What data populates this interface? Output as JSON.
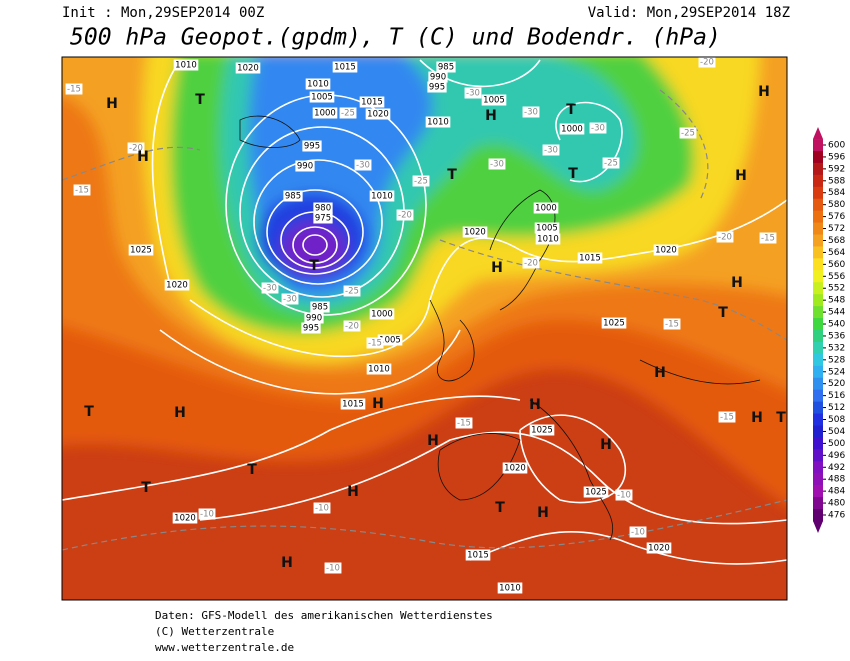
{
  "header": {
    "init": "Init : Mon,29SEP2014 00Z",
    "valid": "Valid: Mon,29SEP2014 18Z",
    "title": "500 hPa Geopot.(gpdm), T (C) und Bodendr. (hPa)"
  },
  "colorbar": {
    "ticks": [
      600,
      596,
      592,
      588,
      584,
      580,
      576,
      572,
      568,
      564,
      560,
      556,
      552,
      548,
      544,
      540,
      536,
      532,
      528,
      524,
      520,
      516,
      512,
      508,
      504,
      500,
      496,
      492,
      488,
      484,
      480,
      476
    ],
    "colors": [
      "#c01060",
      "#a00020",
      "#b41818",
      "#c82814",
      "#d83c10",
      "#e45a10",
      "#ec7010",
      "#f08818",
      "#f4a020",
      "#f8c020",
      "#fce020",
      "#f0f020",
      "#c8f020",
      "#a0e820",
      "#70e030",
      "#40d840",
      "#30d080",
      "#30d0b0",
      "#30c8e0",
      "#30b0f0",
      "#3090f0",
      "#3070f0",
      "#2050e0",
      "#2030e0",
      "#2020d0",
      "#4010d0",
      "#6010c8",
      "#8010c0",
      "#9010b8",
      "#a010b0",
      "#800890",
      "#600070"
    ]
  },
  "map": {
    "pressure_labels": [
      1010,
      1020,
      1015,
      1010,
      1005,
      1000,
      1015,
      1020,
      985,
      990,
      995,
      1005,
      1010,
      1000,
      995,
      990,
      985,
      1010,
      980,
      975,
      1020,
      1000,
      1005,
      1010,
      1015,
      1020,
      1025,
      1020,
      985,
      990,
      995,
      1000,
      1005,
      1010,
      1015,
      1025,
      1025,
      1020,
      1025,
      1020,
      1020,
      1015,
      1010
    ],
    "temperature_labels": [
      -15,
      -20,
      -15,
      -30,
      -30,
      -30,
      -30,
      -30,
      -25,
      -25,
      -25,
      -30,
      -25,
      -20,
      -25,
      -20,
      -15,
      -30,
      -30,
      -20,
      -20,
      -15,
      -15,
      -15,
      -15,
      -10,
      -10,
      -10,
      -10,
      -10,
      -20
    ],
    "pressure_centers": [
      "H",
      "T",
      "H",
      "H",
      "T",
      "T",
      "H",
      "T",
      "H",
      "H",
      "H",
      "T",
      "H",
      "H",
      "H",
      "H",
      "T",
      "H",
      "H",
      "T",
      "T",
      "H",
      "T",
      "H",
      "H",
      "T",
      "H",
      "T"
    ]
  },
  "footer": [
    "Daten: GFS-Modell des amerikanischen Wetterdienstes",
    "(C) Wetterzentrale",
    "www.wetterzentrale.de"
  ]
}
